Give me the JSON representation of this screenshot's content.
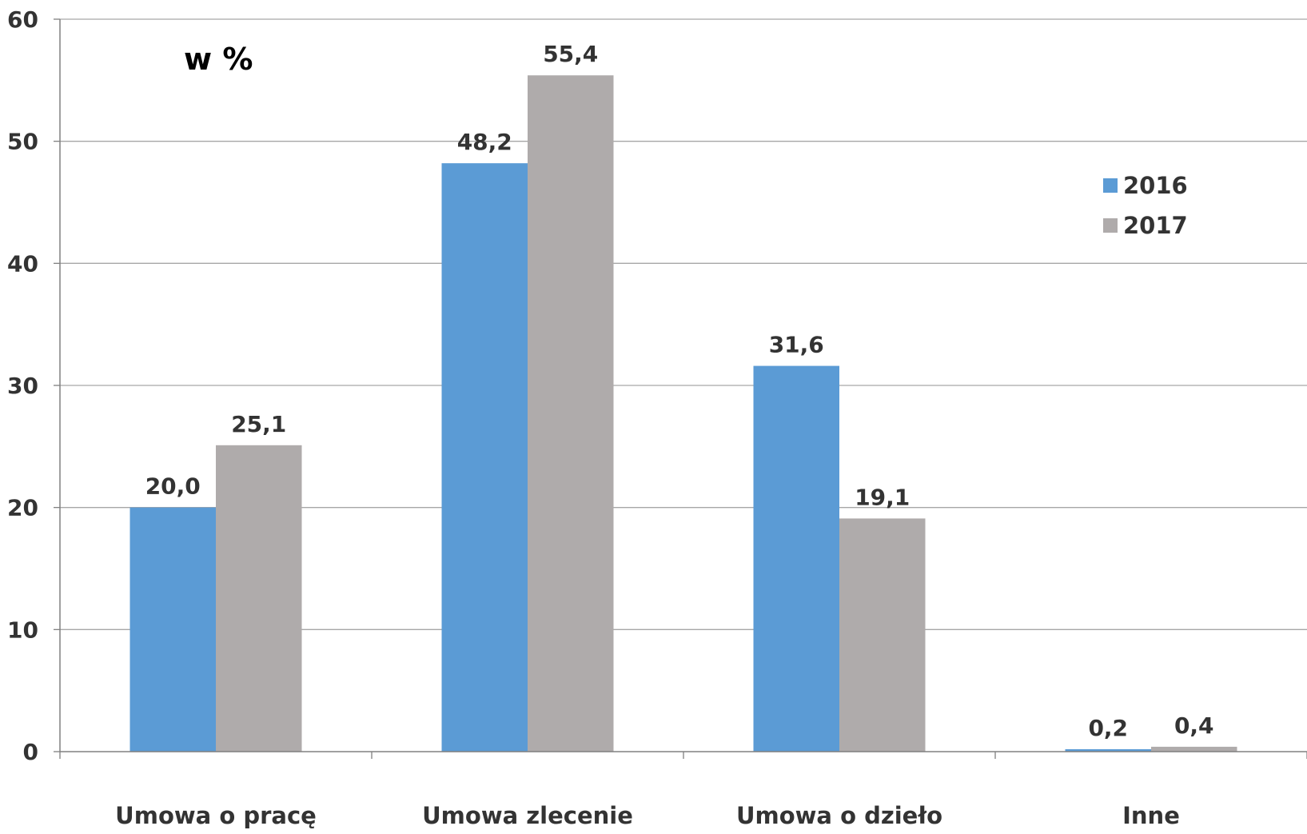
{
  "chart_data": {
    "type": "bar",
    "unit_label": "w %",
    "categories": [
      "Umowa o pracę",
      "Umowa zlecenie",
      "Umowa o dzieło",
      "Inne"
    ],
    "series": [
      {
        "name": "2016",
        "color": "#5b9bd5",
        "values": [
          20.0,
          48.2,
          31.6,
          0.2
        ],
        "labels": [
          "20,0",
          "48,2",
          "31,6",
          "0,2"
        ]
      },
      {
        "name": "2017",
        "color": "#afabab",
        "values": [
          25.1,
          55.4,
          19.1,
          0.4
        ],
        "labels": [
          "25,1",
          "55,4",
          "19,1",
          "0,4"
        ]
      }
    ],
    "y_ticks": [
      "0",
      "10",
      "20",
      "30",
      "40",
      "50",
      "60"
    ],
    "ylim": [
      0,
      60
    ],
    "grid": true,
    "legend_position": "right"
  }
}
